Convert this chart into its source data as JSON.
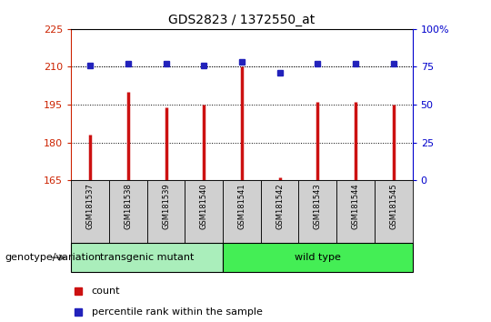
{
  "title": "GDS2823 / 1372550_at",
  "samples": [
    "GSM181537",
    "GSM181538",
    "GSM181539",
    "GSM181540",
    "GSM181541",
    "GSM181542",
    "GSM181543",
    "GSM181544",
    "GSM181545"
  ],
  "counts": [
    183,
    200,
    194,
    195,
    210,
    166,
    196,
    196,
    195
  ],
  "percentiles": [
    76,
    77,
    77,
    76,
    78,
    71,
    77,
    77,
    77
  ],
  "groups": [
    {
      "label": "transgenic mutant",
      "start": 0,
      "end": 4,
      "color": "#aaeebb"
    },
    {
      "label": "wild type",
      "start": 4,
      "end": 9,
      "color": "#44ee55"
    }
  ],
  "group_label": "genotype/variation",
  "ylim_left": [
    165,
    225
  ],
  "ylim_right": [
    0,
    100
  ],
  "yticks_left": [
    165,
    180,
    195,
    210,
    225
  ],
  "yticks_right": [
    0,
    25,
    50,
    75,
    100
  ],
  "bar_color": "#cc1111",
  "dot_color": "#2222bb",
  "legend_count_label": "count",
  "legend_pct_label": "percentile rank within the sample",
  "left_tick_color": "#cc2200",
  "right_tick_color": "#0000cc"
}
